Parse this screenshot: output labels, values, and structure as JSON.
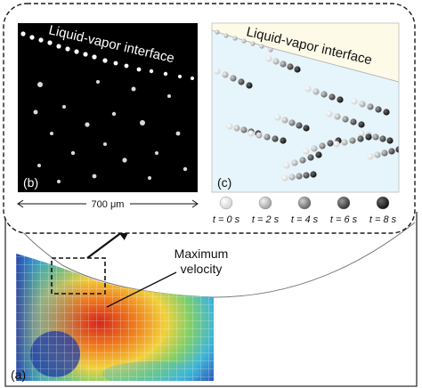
{
  "panels": {
    "a_label": "(a)",
    "b_label": "(b)",
    "c_label": "(c)"
  },
  "annotations": {
    "interface_b": "Liquid-vapor interface",
    "interface_c": "Liquid-vapor interface",
    "scale_bar": "700 μm",
    "max_velocity_line1": "Maximum",
    "max_velocity_line2": "velocity"
  },
  "time_legend": [
    {
      "label": "t = 0 s",
      "shade": "#e6e6e6"
    },
    {
      "label": "t = 2 s",
      "shade": "#bdbdbd"
    },
    {
      "label": "t = 4 s",
      "shade": "#8a8a8a"
    },
    {
      "label": "t = 6 s",
      "shade": "#555555"
    },
    {
      "label": "t = 8 s",
      "shade": "#222222"
    }
  ],
  "colors": {
    "panel_c_liquid": "#e6f4fb",
    "panel_c_vapor": "#fdfbe8",
    "panel_b_background": "#000000",
    "callout_border": "#1a1a1a"
  }
}
